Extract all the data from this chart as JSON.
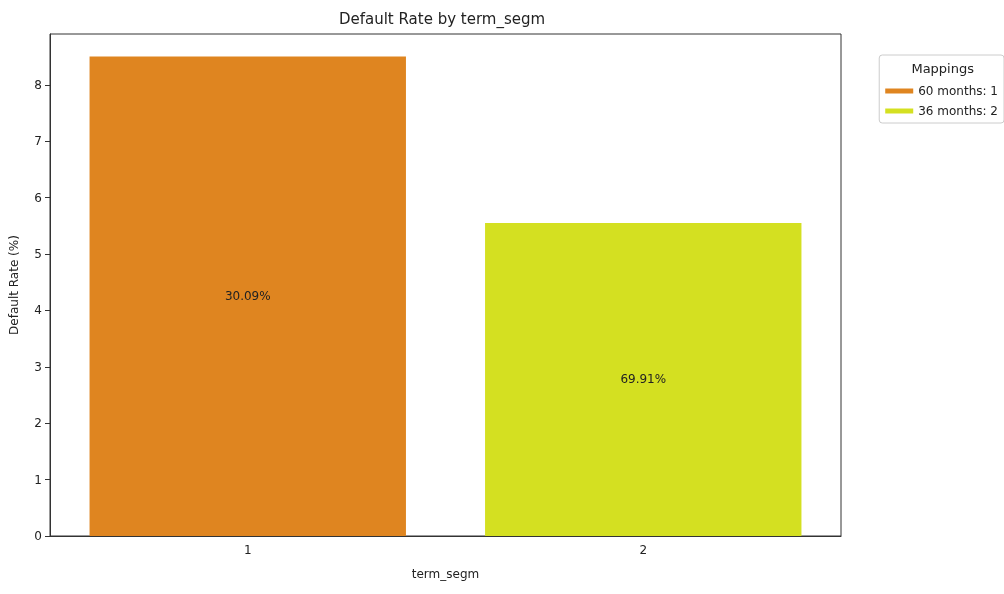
{
  "chart_data": {
    "type": "bar",
    "title": "Default Rate by term_segm",
    "xlabel": "term_segm",
    "ylabel": "Default Rate (%)",
    "legend_title": "Mappings",
    "categories": [
      "1",
      "2"
    ],
    "series": [
      {
        "name": "60 months: 1",
        "color": "#df8520",
        "values": [
          8.5,
          null
        ]
      },
      {
        "name": "36 months: 2",
        "color": "#d4e021",
        "values": [
          null,
          5.55
        ]
      }
    ],
    "annotations": [
      "30.09%",
      "69.91%"
    ],
    "ylim": [
      0,
      8.9
    ],
    "yticks": [
      0,
      1,
      2,
      3,
      4,
      5,
      6,
      7,
      8
    ],
    "grid": false,
    "legend": "top right"
  }
}
